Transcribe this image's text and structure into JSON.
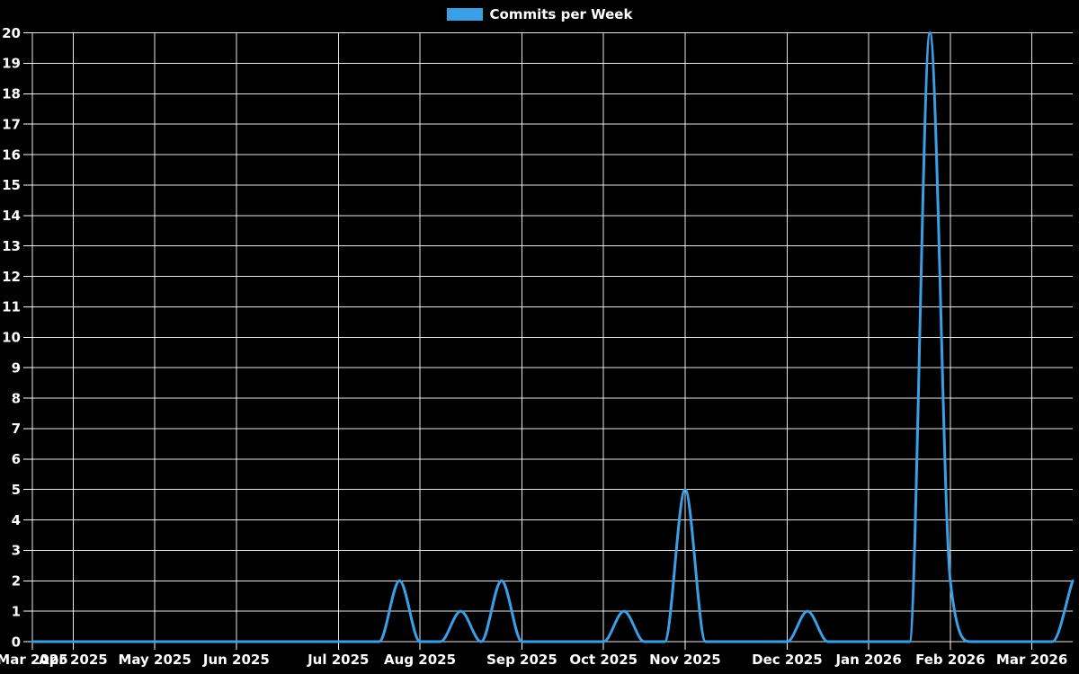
{
  "legend": {
    "label": "Commits per Week",
    "swatch_color": "#3b9fe8"
  },
  "chart_data": {
    "type": "line",
    "title": "Commits per Week",
    "legend_position": "top",
    "background_color": "#000000",
    "grid": true,
    "grid_color": "#ffffff",
    "text_color": "#ffffff",
    "line_color": "#3b9fe8",
    "line_width": 3,
    "smoothing": "monotone-cubic",
    "ylim": [
      0,
      20
    ],
    "ytick_step": 1,
    "x_unit": "week",
    "weeks_total": 52,
    "x_tick_labels": [
      "Mar 2025",
      "Apr 2025",
      "May 2025",
      "Jun 2025",
      "Jul 2025",
      "Aug 2025",
      "Sep 2025",
      "Oct 2025",
      "Nov 2025",
      "Dec 2025",
      "Jan 2026",
      "Feb 2026",
      "Mar 2026"
    ],
    "month_ticks": [
      {
        "label": "Mar 2025",
        "week": 0
      },
      {
        "label": "Apr 2025",
        "week": 2
      },
      {
        "label": "May 2025",
        "week": 6
      },
      {
        "label": "Jun 2025",
        "week": 10
      },
      {
        "label": "Jul 2025",
        "week": 15
      },
      {
        "label": "Aug 2025",
        "week": 19
      },
      {
        "label": "Sep 2025",
        "week": 24
      },
      {
        "label": "Oct 2025",
        "week": 28
      },
      {
        "label": "Nov 2025",
        "week": 32
      },
      {
        "label": "Dec 2025",
        "week": 37
      },
      {
        "label": "Jan 2026",
        "week": 41
      },
      {
        "label": "Feb 2026",
        "week": 45
      },
      {
        "label": "Mar 2026",
        "week": 49
      }
    ],
    "series": [
      {
        "name": "Commits per Week",
        "color": "#3b9fe8",
        "values": [
          0,
          0,
          0,
          0,
          0,
          0,
          0,
          0,
          0,
          0,
          0,
          0,
          0,
          0,
          0,
          0,
          0,
          0,
          2,
          0,
          0,
          1,
          0,
          2,
          0,
          0,
          0,
          0,
          0,
          1,
          0,
          0,
          5,
          0,
          0,
          0,
          0,
          0,
          1,
          0,
          0,
          0,
          0,
          0,
          20,
          2,
          0,
          0,
          0,
          0,
          0,
          2
        ]
      }
    ],
    "notable_points": [
      {
        "week": 18,
        "approx_date": "Aug 2025",
        "value": 2
      },
      {
        "week": 21,
        "approx_date": "mid Aug 2025",
        "value": 1
      },
      {
        "week": 23,
        "approx_date": "late Aug 2025",
        "value": 2
      },
      {
        "week": 29,
        "approx_date": "Oct 2025",
        "value": 1
      },
      {
        "week": 32,
        "approx_date": "Nov 2025",
        "value": 5
      },
      {
        "week": 38,
        "approx_date": "Dec 2025",
        "value": 1
      },
      {
        "week": 44,
        "approx_date": "late Jan 2026",
        "value": 20
      },
      {
        "week": 45,
        "approx_date": "Feb 2026",
        "value": 2
      },
      {
        "week": 51,
        "approx_date": "mid Mar 2026",
        "value": 2
      }
    ]
  }
}
